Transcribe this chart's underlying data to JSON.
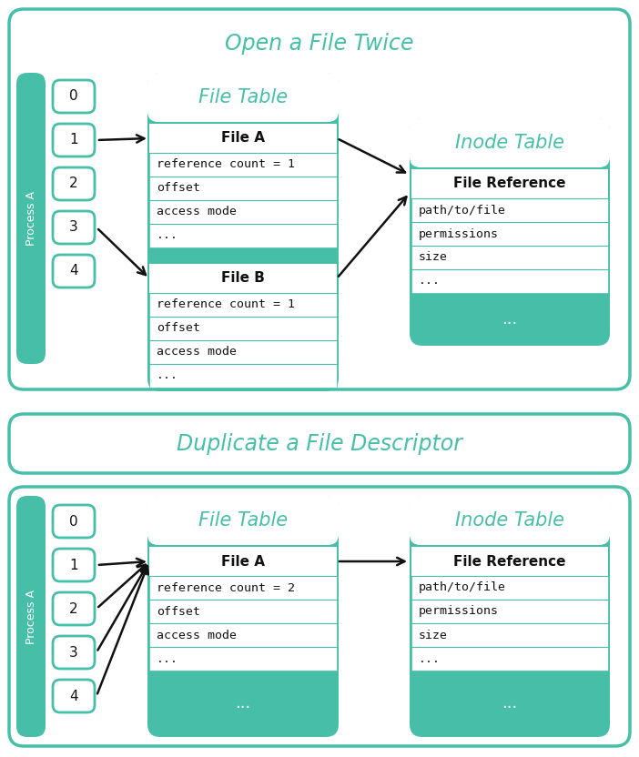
{
  "bg_color": "#ffffff",
  "teal": "#47bfa8",
  "white": "#ffffff",
  "black": "#111111",
  "title1": "Open a File Twice",
  "title2": "Duplicate a File Descriptor",
  "fd_labels": [
    "0",
    "1",
    "2",
    "3",
    "4"
  ],
  "process_label": "Process A",
  "file_table_title": "File Table",
  "inode_table_title": "Inode Table",
  "file_a_title": "File A",
  "file_b_title": "File B",
  "file_ref_title": "File Reference",
  "file_a_rows": [
    "reference count = 1",
    "offset",
    "access mode",
    "..."
  ],
  "file_b_rows": [
    "reference count = 1",
    "offset",
    "access mode",
    "..."
  ],
  "file_a2_rows": [
    "reference count = 2",
    "offset",
    "access mode",
    "..."
  ],
  "inode_rows": [
    "path/to/file",
    "permissions",
    "size",
    "..."
  ],
  "mono_font": "monospace",
  "title_fontsize": 17,
  "table_title_fontsize": 15,
  "row_fontsize": 9.5,
  "fd_fontsize": 11,
  "label_fontsize": 9
}
